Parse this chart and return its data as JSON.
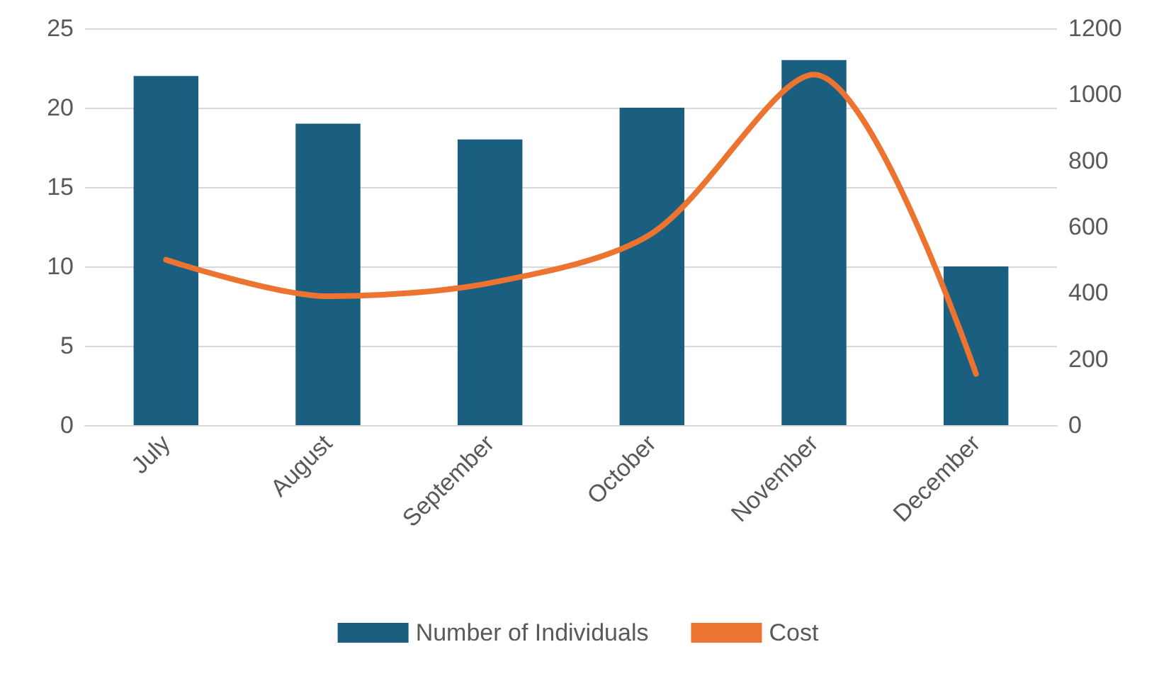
{
  "chart_data": {
    "type": "bar",
    "categories": [
      "July",
      "August",
      "September",
      "October",
      "November",
      "December"
    ],
    "series": [
      {
        "name": "Number of Individuals",
        "color": "#1a5e80",
        "values": [
          22,
          19,
          18,
          20,
          23,
          10
        ]
      },
      {
        "name": "Cost",
        "type": "line",
        "axis": "y2",
        "color": "#ed7330",
        "values": [
          500,
          390,
          430,
          580,
          1060,
          155
        ]
      }
    ],
    "ylim": [
      0,
      25
    ],
    "yticks": [
      0,
      5,
      10,
      15,
      20,
      25
    ],
    "y2lim": [
      0,
      1200
    ],
    "y2ticks": [
      0,
      200,
      400,
      600,
      800,
      1000,
      1200
    ],
    "grid": "y",
    "legend": "bottom",
    "marker": "none",
    "line_style": "solid"
  }
}
